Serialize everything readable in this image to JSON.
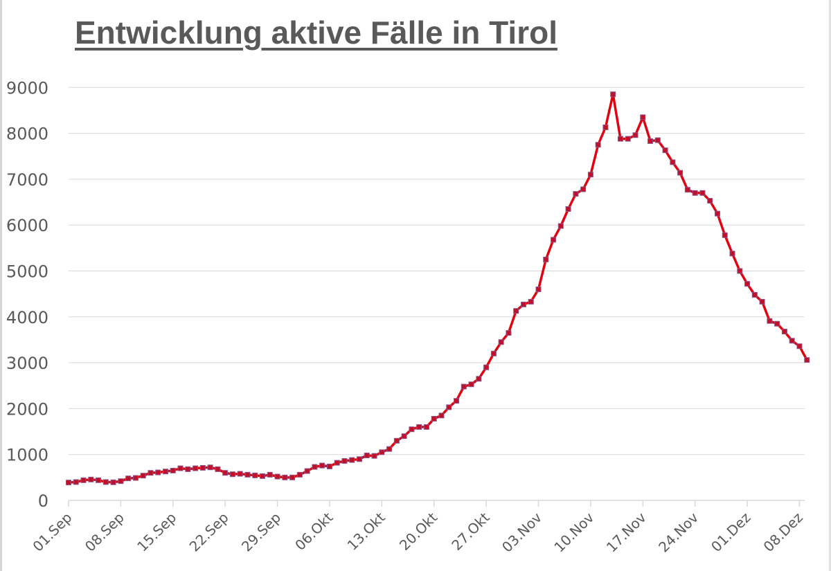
{
  "chart_data": {
    "type": "line",
    "title": "Entwicklung aktive Fälle in Tirol",
    "xlabel": "",
    "ylabel": "",
    "ylim": [
      0,
      9000
    ],
    "y_ticks": [
      0,
      1000,
      2000,
      3000,
      4000,
      5000,
      6000,
      7000,
      8000,
      9000
    ],
    "x_tick_labels": [
      "01.Sep",
      "08.Sep",
      "15.Sep",
      "22.Sep",
      "29.Sep",
      "06.Okt",
      "13.Okt",
      "20.Okt",
      "27.Okt",
      "03.Nov",
      "10.Nov",
      "17.Nov",
      "24.Nov",
      "01.Dez",
      "08.Dez"
    ],
    "x_tick_interval_days": 7,
    "start_date": "01.Sep",
    "end_date": "09.Dez",
    "grid": "horizontal",
    "legend": "none",
    "series": [
      {
        "name": "Aktive Fälle",
        "color": "#e3000f",
        "marker_color": "#c0102a",
        "marker_border": "#8a5a8c",
        "values": [
          390,
          400,
          440,
          455,
          440,
          400,
          395,
          420,
          480,
          490,
          540,
          600,
          610,
          630,
          650,
          700,
          680,
          700,
          710,
          720,
          680,
          600,
          570,
          580,
          560,
          545,
          530,
          560,
          520,
          500,
          500,
          560,
          640,
          730,
          760,
          740,
          820,
          860,
          880,
          900,
          980,
          970,
          1050,
          1120,
          1300,
          1400,
          1550,
          1600,
          1600,
          1780,
          1850,
          2030,
          2170,
          2480,
          2530,
          2650,
          2900,
          3200,
          3450,
          3650,
          4130,
          4270,
          4330,
          4600,
          5250,
          5680,
          5980,
          6350,
          6680,
          6780,
          7100,
          7750,
          8130,
          8850,
          7880,
          7880,
          7960,
          8350,
          7830,
          7850,
          7630,
          7370,
          7140,
          6770,
          6700,
          6700,
          6530,
          6250,
          5780,
          5380,
          5000,
          4720,
          4480,
          4330,
          3910,
          3850,
          3680,
          3480,
          3360,
          3060
        ]
      }
    ]
  }
}
